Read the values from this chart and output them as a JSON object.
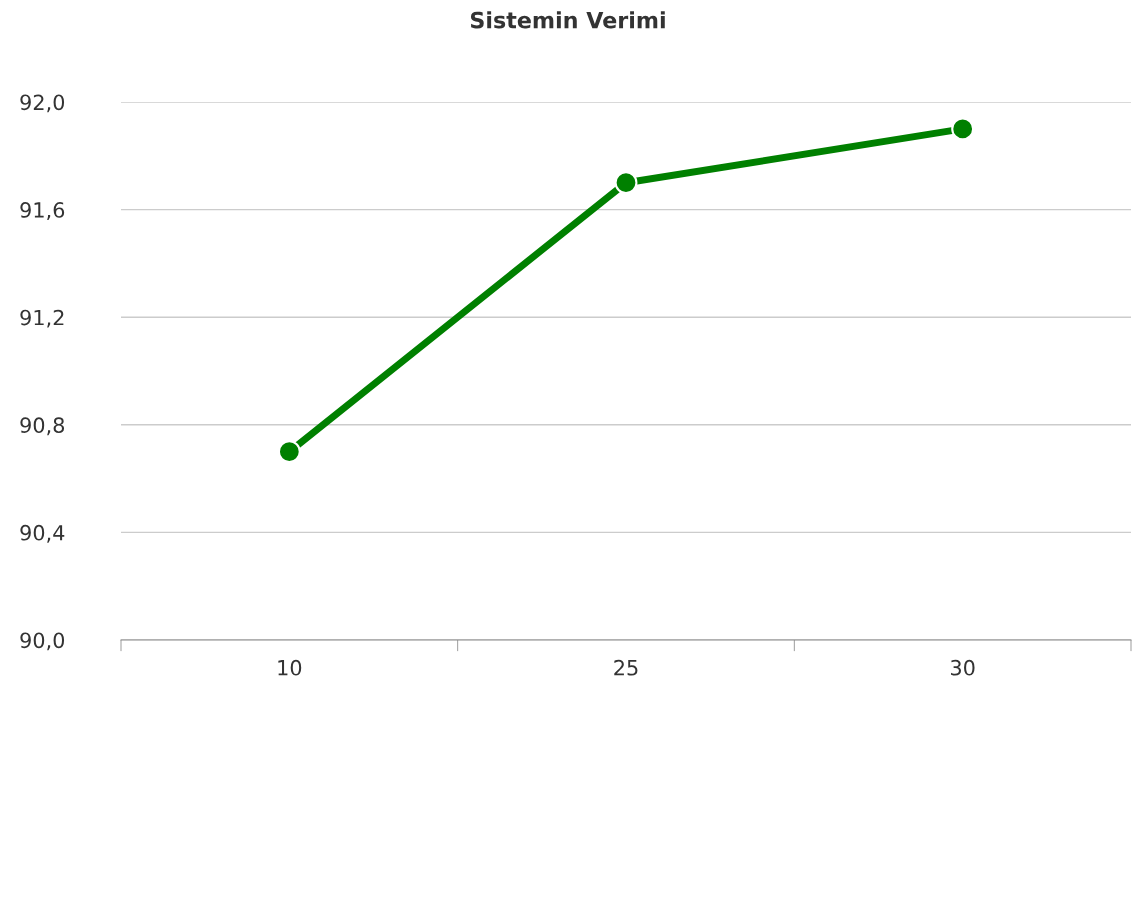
{
  "chart_data": {
    "type": "line",
    "title": "Sistemin Verimi",
    "categories": [
      "10",
      "25",
      "30"
    ],
    "series": [
      {
        "color": "#008000",
        "values": [
          90.7,
          91.7,
          91.9
        ]
      }
    ],
    "ylim": [
      90.0,
      92.0
    ],
    "yticks": [
      {
        "value": 90.0,
        "label": "90,0"
      },
      {
        "value": 90.4,
        "label": "90,4"
      },
      {
        "value": 90.8,
        "label": "90,8"
      },
      {
        "value": 91.2,
        "label": "91,2"
      },
      {
        "value": 91.6,
        "label": "91,6"
      },
      {
        "value": 92.0,
        "label": "92,0"
      }
    ],
    "grid": "y",
    "marker": "circle",
    "line_style": "solid",
    "legend": false
  }
}
